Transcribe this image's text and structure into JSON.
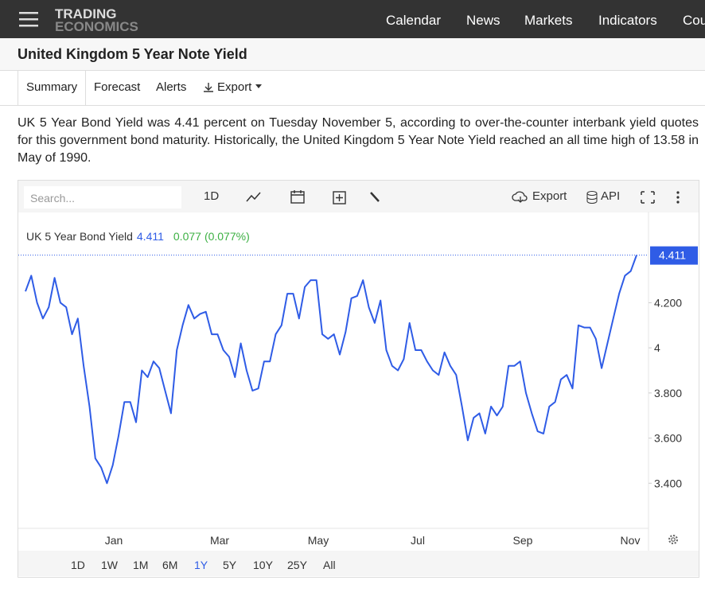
{
  "nav": {
    "logo_top": "TRADING",
    "logo_bottom": "ECONOMICS",
    "links": [
      "Calendar",
      "News",
      "Markets",
      "Indicators",
      "Countries"
    ]
  },
  "title": "United Kingdom 5 Year Note Yield",
  "tabs": [
    "Summary",
    "Forecast",
    "Alerts",
    "Export"
  ],
  "description": "UK 5 Year Bond Yield was 4.41 percent on Tuesday November 5, according to over-the-counter interbank yield quotes for this government bond maturity. Historically, the United Kingdom 5 Year Note Yield reached an all time high of 13.58 in May of 1990.",
  "toolbar": {
    "search": "Search...",
    "interval": "1D",
    "export": "Export",
    "api": "API"
  },
  "chart_data": {
    "type": "line",
    "series": [
      {
        "name": "UK 5 Year Bond Yield",
        "color": "#2f5ce6",
        "values": [
          4.25,
          4.32,
          4.2,
          4.13,
          4.18,
          4.31,
          4.2,
          4.18,
          4.06,
          4.13,
          3.92,
          3.74,
          3.51,
          3.47,
          3.4,
          3.48,
          3.61,
          3.76,
          3.76,
          3.67,
          3.9,
          3.87,
          3.94,
          3.91,
          3.81,
          3.71,
          3.99,
          4.1,
          4.19,
          4.13,
          4.15,
          4.16,
          4.06,
          4.06,
          3.99,
          3.96,
          3.87,
          4.02,
          3.9,
          3.81,
          3.82,
          3.94,
          3.94,
          4.06,
          4.1,
          4.24,
          4.24,
          4.13,
          4.27,
          4.3,
          4.3,
          4.06,
          4.04,
          4.06,
          3.97,
          4.07,
          4.22,
          4.23,
          4.3,
          4.18,
          4.11,
          4.21,
          3.99,
          3.92,
          3.9,
          3.95,
          4.11,
          3.99,
          3.99,
          3.94,
          3.9,
          3.88,
          3.98,
          3.92,
          3.88,
          3.74,
          3.59,
          3.69,
          3.71,
          3.62,
          3.74,
          3.7,
          3.74,
          3.92,
          3.92,
          3.94,
          3.8,
          3.71,
          3.63,
          3.62,
          3.74,
          3.76,
          3.86,
          3.88,
          3.82,
          4.1,
          4.09,
          4.09,
          4.04,
          3.91,
          4.02,
          4.13,
          4.24,
          4.32,
          4.34,
          4.411
        ]
      }
    ],
    "last_value": 4.411,
    "change": "0.077",
    "change_pct": "(0.077%)",
    "change_color": "#3cb043",
    "ylim": [
      3.2,
      4.6
    ],
    "yticks": [
      {
        "value": 3.4,
        "label": "3.400"
      },
      {
        "value": 3.6,
        "label": "3.600"
      },
      {
        "value": 3.8,
        "label": "3.800"
      },
      4,
      {
        "value": 4.2,
        "label": "4.200"
      }
    ],
    "xlabels": [
      "Jan",
      "Mar",
      "May",
      "Jul",
      "Sep",
      "Nov"
    ]
  },
  "ranges": [
    "1D",
    "1W",
    "1M",
    "6M",
    "1Y",
    "5Y",
    "10Y",
    "25Y",
    "All"
  ],
  "active_range": 4
}
